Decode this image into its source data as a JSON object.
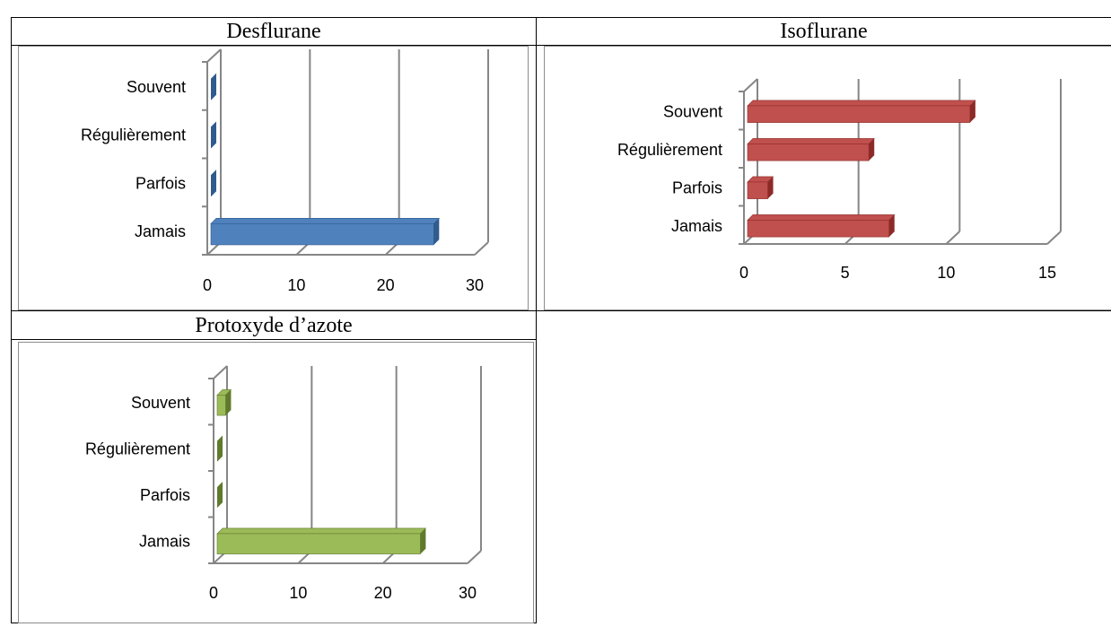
{
  "chart_data": [
    {
      "type": "bar",
      "orientation": "horizontal",
      "title": "Desflurane",
      "categories": [
        "Souvent",
        "Régulièrement",
        "Parfois",
        "Jamais"
      ],
      "values": [
        0,
        0,
        0,
        25
      ],
      "xlim": [
        0,
        30
      ],
      "xticks": [
        "0",
        "10",
        "20",
        "30"
      ],
      "color": "#4f81bd",
      "dark": "#2f5b8e",
      "gridlines": true,
      "legend": "none"
    },
    {
      "type": "bar",
      "orientation": "horizontal",
      "title": "Isoflurane",
      "categories": [
        "Souvent",
        "Régulièrement",
        "Parfois",
        "Jamais"
      ],
      "values": [
        11,
        6,
        1,
        7
      ],
      "xlim": [
        0,
        15
      ],
      "xticks": [
        "0",
        "5",
        "10",
        "15"
      ],
      "color": "#c0504d",
      "dark": "#8c2a28",
      "gridlines": true,
      "legend": "none"
    },
    {
      "type": "bar",
      "orientation": "horizontal",
      "title": "Protoxyde d’azote",
      "categories": [
        "Souvent",
        "Régulièrement",
        "Parfois",
        "Jamais"
      ],
      "values": [
        1,
        0,
        0,
        24
      ],
      "xlim": [
        0,
        30
      ],
      "xticks": [
        "0",
        "10",
        "20",
        "30"
      ],
      "color": "#9bbb59",
      "dark": "#5f7a2c",
      "gridlines": true,
      "legend": "none"
    }
  ]
}
